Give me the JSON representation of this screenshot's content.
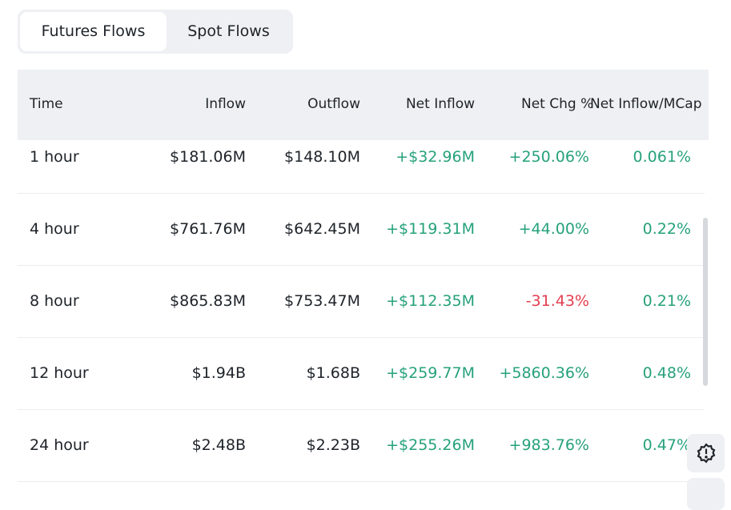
{
  "tabs": [
    {
      "label": "Futures Flows",
      "active": true
    },
    {
      "label": "Spot Flows",
      "active": false
    }
  ],
  "table": {
    "headers": [
      "Time",
      "Inflow",
      "Outflow",
      "Net Inflow",
      "Net Chg %",
      "Net Inflow/MCap"
    ],
    "rows": [
      {
        "time": "1 hour",
        "inflow": "$181.06M",
        "outflow": "$148.10M",
        "net": "+$32.96M",
        "chg": "+250.06%",
        "mcap": "0.061%"
      },
      {
        "time": "4 hour",
        "inflow": "$761.76M",
        "outflow": "$642.45M",
        "net": "+$119.31M",
        "chg": "+44.00%",
        "mcap": "0.22%"
      },
      {
        "time": "8 hour",
        "inflow": "$865.83M",
        "outflow": "$753.47M",
        "net": "+$112.35M",
        "chg": "-31.43%",
        "mcap": "0.21%"
      },
      {
        "time": "12 hour",
        "inflow": "$1.94B",
        "outflow": "$1.68B",
        "net": "+$259.77M",
        "chg": "+5860.36%",
        "mcap": "0.48%"
      },
      {
        "time": "24 hour",
        "inflow": "$2.48B",
        "outflow": "$2.23B",
        "net": "+$255.26M",
        "chg": "+983.76%",
        "mcap": "0.47%"
      }
    ]
  },
  "colors": {
    "positive": "#26a17b",
    "negative": "#e33e4f"
  },
  "icons": {
    "feedback": "alert-badge-icon"
  }
}
